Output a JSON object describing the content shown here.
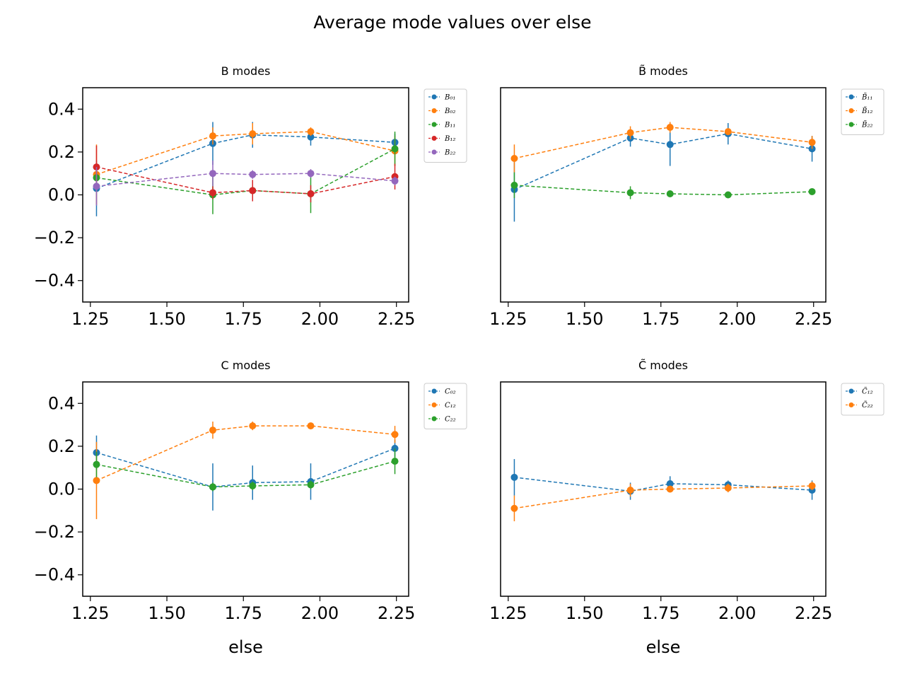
{
  "suptitle": "Average mode values over else",
  "chart_data": [
    {
      "type": "line",
      "title": "B modes",
      "xlabel": "",
      "ylim": [
        -0.5,
        0.5
      ],
      "xlim": [
        1.225,
        2.29
      ],
      "x_ticks": [
        "1.25",
        "1.50",
        "1.75",
        "2.00",
        "2.25"
      ],
      "y_ticks": [
        "0.4",
        "0.2",
        "0.0",
        "−0.2",
        "−0.4"
      ],
      "show_y_ticks": true,
      "legend_position": "outside-top-right",
      "series": [
        {
          "name": "B₀₁",
          "color": "#1f77b4",
          "x": [
            1.27,
            1.65,
            1.78,
            1.97,
            2.245
          ],
          "y": [
            0.03,
            0.24,
            0.28,
            0.27,
            0.245
          ],
          "err": [
            0.13,
            0.1,
            0.06,
            0.04,
            0.04
          ]
        },
        {
          "name": "B₀₂",
          "color": "#ff7f0e",
          "x": [
            1.27,
            1.65,
            1.78,
            1.97,
            2.245
          ],
          "y": [
            0.095,
            0.275,
            0.285,
            0.295,
            0.205
          ],
          "err": [
            0.14,
            0.04,
            0.05,
            0.02,
            0.07
          ]
        },
        {
          "name": "B₁₁",
          "color": "#2ca02c",
          "x": [
            1.27,
            1.65,
            1.78,
            1.97,
            2.245
          ],
          "y": [
            0.08,
            0.0,
            0.02,
            0.005,
            0.215
          ],
          "err": [
            0.04,
            0.09,
            0.04,
            0.09,
            0.08
          ]
        },
        {
          "name": "B₁₂",
          "color": "#d62728",
          "x": [
            1.27,
            1.65,
            1.78,
            1.97,
            2.245
          ],
          "y": [
            0.13,
            0.01,
            0.02,
            0.005,
            0.085
          ],
          "err": [
            0.1,
            0.03,
            0.05,
            0.04,
            0.06
          ]
        },
        {
          "name": "B₂₂",
          "color": "#9467bd",
          "x": [
            1.27,
            1.65,
            1.78,
            1.97,
            2.245
          ],
          "y": [
            0.04,
            0.1,
            0.095,
            0.1,
            0.065
          ],
          "err": [
            0.09,
            0.06,
            0.02,
            0.02,
            0.02
          ]
        }
      ]
    },
    {
      "type": "line",
      "title": "B̃ modes",
      "xlabel": "",
      "ylim": [
        -0.5,
        0.5
      ],
      "xlim": [
        1.225,
        2.29
      ],
      "x_ticks": [
        "1.25",
        "1.50",
        "1.75",
        "2.00",
        "2.25"
      ],
      "y_ticks": [],
      "show_y_ticks": false,
      "legend_position": "outside-top-right",
      "series": [
        {
          "name": "B̃₁₁",
          "color": "#1f77b4",
          "x": [
            1.27,
            1.65,
            1.78,
            1.97,
            2.245
          ],
          "y": [
            0.025,
            0.265,
            0.235,
            0.285,
            0.215
          ],
          "err": [
            0.15,
            0.04,
            0.1,
            0.05,
            0.06
          ]
        },
        {
          "name": "B̃₁₂",
          "color": "#ff7f0e",
          "x": [
            1.27,
            1.65,
            1.78,
            1.97,
            2.245
          ],
          "y": [
            0.17,
            0.29,
            0.315,
            0.295,
            0.245
          ],
          "err": [
            0.065,
            0.03,
            0.025,
            0.015,
            0.03
          ]
        },
        {
          "name": "B̃₂₂",
          "color": "#2ca02c",
          "x": [
            1.27,
            1.65,
            1.78,
            1.97,
            2.245
          ],
          "y": [
            0.045,
            0.01,
            0.005,
            0.0,
            0.015
          ],
          "err": [
            0.06,
            0.03,
            0.015,
            0.01,
            0.01
          ]
        }
      ]
    },
    {
      "type": "line",
      "title": "C modes",
      "xlabel": "else",
      "ylim": [
        -0.5,
        0.5
      ],
      "xlim": [
        1.225,
        2.29
      ],
      "x_ticks": [
        "1.25",
        "1.50",
        "1.75",
        "2.00",
        "2.25"
      ],
      "y_ticks": [
        "0.4",
        "0.2",
        "0.0",
        "−0.2",
        "−0.4"
      ],
      "show_y_ticks": true,
      "legend_position": "outside-top-right",
      "series": [
        {
          "name": "C₀₂",
          "color": "#1f77b4",
          "x": [
            1.27,
            1.65,
            1.78,
            1.97,
            2.245
          ],
          "y": [
            0.17,
            0.01,
            0.03,
            0.035,
            0.19
          ],
          "err": [
            0.08,
            0.11,
            0.08,
            0.085,
            0.04
          ]
        },
        {
          "name": "C₁₂",
          "color": "#ff7f0e",
          "x": [
            1.27,
            1.65,
            1.78,
            1.97,
            2.245
          ],
          "y": [
            0.04,
            0.275,
            0.295,
            0.295,
            0.255
          ],
          "err": [
            0.18,
            0.04,
            0.02,
            0.01,
            0.04
          ]
        },
        {
          "name": "C₂₂",
          "color": "#2ca02c",
          "x": [
            1.27,
            1.65,
            1.78,
            1.97,
            2.245
          ],
          "y": [
            0.115,
            0.01,
            0.015,
            0.02,
            0.13
          ],
          "err": [
            0.06,
            0.02,
            0.02,
            0.02,
            0.06
          ]
        }
      ]
    },
    {
      "type": "line",
      "title": "C̃ modes",
      "xlabel": "else",
      "ylim": [
        -0.5,
        0.5
      ],
      "xlim": [
        1.225,
        2.29
      ],
      "x_ticks": [
        "1.25",
        "1.50",
        "1.75",
        "2.00",
        "2.25"
      ],
      "y_ticks": [],
      "show_y_ticks": false,
      "legend_position": "outside-top-right",
      "series": [
        {
          "name": "C̃₁₂",
          "color": "#1f77b4",
          "x": [
            1.27,
            1.65,
            1.78,
            1.97,
            2.245
          ],
          "y": [
            0.055,
            -0.01,
            0.025,
            0.02,
            -0.005
          ],
          "err": [
            0.085,
            0.04,
            0.035,
            0.02,
            0.045
          ]
        },
        {
          "name": "C̃₂₂",
          "color": "#ff7f0e",
          "x": [
            1.27,
            1.65,
            1.78,
            1.97,
            2.245
          ],
          "y": [
            -0.09,
            -0.005,
            0.0,
            0.005,
            0.015
          ],
          "err": [
            0.06,
            0.03,
            0.015,
            0.02,
            0.02
          ]
        }
      ]
    }
  ]
}
